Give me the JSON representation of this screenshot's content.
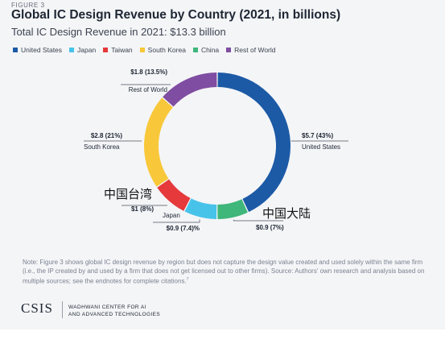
{
  "header": {
    "figure_label": "FIGURE 3",
    "title": "Global IC Design Revenue by Country (2021, in billions)",
    "subtitle": "Total IC Design Revenue in 2021: $13.3 billion"
  },
  "chart_data": {
    "type": "pie",
    "donut": true,
    "title": "Global IC Design Revenue by Country (2021, in billions)",
    "subtitle": "Total IC Design Revenue in 2021: $13.3 billion",
    "legend_position": "top",
    "series": [
      {
        "name": "United States",
        "value": 5.7,
        "percent": 43,
        "color": "#1c5aa6",
        "value_label": "$5.7 (43%)"
      },
      {
        "name": "China",
        "value": 0.9,
        "percent": 7,
        "color": "#3fb67a",
        "value_label": "$0.9 (7%)"
      },
      {
        "name": "Japan",
        "value": 0.9,
        "percent": 7.4,
        "color": "#47c3ea",
        "value_label": "$0.9 (7.4)%"
      },
      {
        "name": "Taiwan",
        "value": 1,
        "percent": 8,
        "color": "#e5393b",
        "value_label": "$1 (8%)"
      },
      {
        "name": "South Korea",
        "value": 2.8,
        "percent": 21,
        "color": "#f8c83a",
        "value_label": "$2.8 (21%)"
      },
      {
        "name": "Rest of World",
        "value": 1.8,
        "percent": 13.5,
        "color": "#7f4da1",
        "value_label": "$1.8 (13.5%)"
      }
    ]
  },
  "legend_items": [
    {
      "label": "United States",
      "color": "#1c5aa6"
    },
    {
      "label": "Japan",
      "color": "#47c3ea"
    },
    {
      "label": "Taiwan",
      "color": "#e5393b"
    },
    {
      "label": "South Korea",
      "color": "#f8c83a"
    },
    {
      "label": "China",
      "color": "#3fb67a"
    },
    {
      "label": "Rest of World",
      "color": "#7f4da1"
    }
  ],
  "overlay_labels": {
    "taiwan_cn": "中国台湾",
    "china_cn": "中国大陆"
  },
  "note": "Note: Figure 3 shows global IC design revenue by region but does not capture the design value created and used solely within the same firm (i.e., the IP created by and used by a firm that does not get licensed out to other firms). Source: Authors' own research and analysis based on multiple sources; see the endnotes for complete citations.",
  "note_sup": "7",
  "footer": {
    "logo": "CSIS",
    "center_line1": "WADHWANI CENTER FOR AI",
    "center_line2": "AND ADVANCED TECHNOLOGIES"
  }
}
